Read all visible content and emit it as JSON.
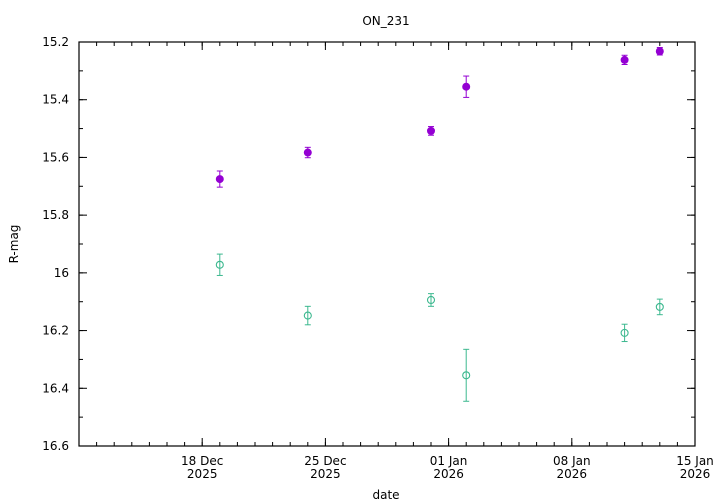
{
  "chart_data": {
    "type": "scatter",
    "title": "ON_231",
    "xlabel": "date",
    "ylabel": "R-mag",
    "y_inverted": true,
    "ylim": [
      15.2,
      16.6
    ],
    "xlim": [
      "2025-12-11",
      "2026-01-15"
    ],
    "y_ticks": [
      "15.2",
      "15.4",
      "15.6",
      "15.8",
      "16",
      "16.2",
      "16.4",
      "16.6"
    ],
    "x_ticks": [
      {
        "date": "2025-12-18",
        "line1": "18 Dec",
        "line2": "2025"
      },
      {
        "date": "2025-12-25",
        "line1": "25 Dec",
        "line2": "2025"
      },
      {
        "date": "2026-01-01",
        "line1": "01 Jan",
        "line2": "2026"
      },
      {
        "date": "2026-01-08",
        "line1": "08 Jan",
        "line2": "2026"
      },
      {
        "date": "2026-01-15",
        "line1": "15 Jan",
        "line2": "2026"
      }
    ],
    "grid": false,
    "legend": "none",
    "series": [
      {
        "color": "#9400d3",
        "marker": "filled-circle",
        "points": [
          {
            "x": "2025-12-19",
            "y": 15.675,
            "err": 0.028
          },
          {
            "x": "2025-12-24",
            "y": 15.583,
            "err": 0.018
          },
          {
            "x": "2025-12-31",
            "y": 15.508,
            "err": 0.015
          },
          {
            "x": "2026-01-02",
            "y": 15.355,
            "err": 0.037
          },
          {
            "x": "2026-01-11",
            "y": 15.262,
            "err": 0.016
          },
          {
            "x": "2026-01-13",
            "y": 15.232,
            "err": 0.013
          }
        ]
      },
      {
        "color": "#3cb88f",
        "marker": "open-circle",
        "points": [
          {
            "x": "2025-12-19",
            "y": 15.972,
            "err": 0.037
          },
          {
            "x": "2025-12-24",
            "y": 16.148,
            "err": 0.032
          },
          {
            "x": "2025-12-31",
            "y": 16.094,
            "err": 0.022
          },
          {
            "x": "2026-01-02",
            "y": 16.355,
            "err": 0.09
          },
          {
            "x": "2026-01-11",
            "y": 16.208,
            "err": 0.03
          },
          {
            "x": "2026-01-13",
            "y": 16.118,
            "err": 0.027
          }
        ]
      }
    ]
  }
}
